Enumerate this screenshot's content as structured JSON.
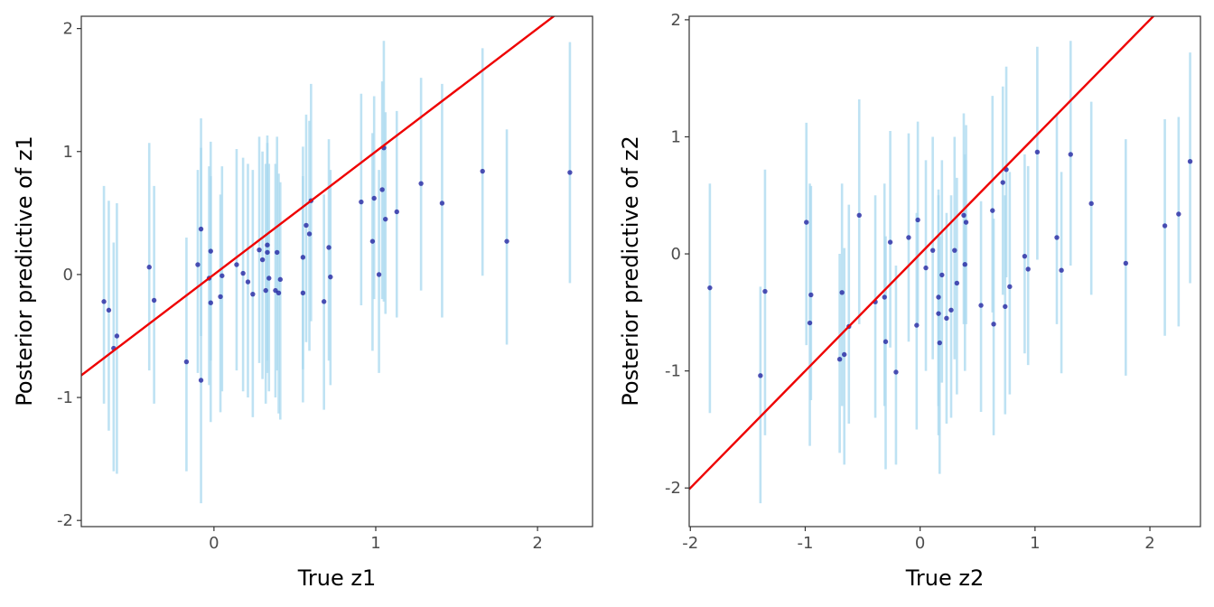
{
  "chart_data": [
    {
      "type": "scatter",
      "xlabel": "True z1",
      "ylabel": "Posterior predictive of z1",
      "xlim": [
        -0.82,
        2.34
      ],
      "ylim": [
        -2.05,
        2.1
      ],
      "xticks": [
        0,
        1,
        2
      ],
      "yticks": [
        -2,
        -1,
        0,
        1,
        2
      ],
      "reference_line": {
        "slope": 1,
        "intercept": 0,
        "color": "#ee0000"
      },
      "interval_color": "#a8d8ef",
      "point_color": "#1a1a9c",
      "points": [
        {
          "x": -0.68,
          "y": -0.22,
          "lo": -1.05,
          "hi": 0.72
        },
        {
          "x": -0.65,
          "y": -0.29,
          "lo": -1.27,
          "hi": 0.6
        },
        {
          "x": -0.62,
          "y": -0.6,
          "lo": -1.6,
          "hi": 0.26
        },
        {
          "x": -0.6,
          "y": -0.5,
          "lo": -1.62,
          "hi": 0.58
        },
        {
          "x": -0.4,
          "y": 0.06,
          "lo": -0.78,
          "hi": 1.07
        },
        {
          "x": -0.37,
          "y": -0.21,
          "lo": -1.05,
          "hi": 0.72
        },
        {
          "x": -0.17,
          "y": -0.71,
          "lo": -1.6,
          "hi": 0.3
        },
        {
          "x": -0.1,
          "y": 0.08,
          "lo": -0.8,
          "hi": 0.85
        },
        {
          "x": -0.08,
          "y": -0.86,
          "lo": -1.86,
          "hi": 1.27
        },
        {
          "x": -0.08,
          "y": 0.37,
          "lo": -0.5,
          "hi": 1.03
        },
        {
          "x": -0.03,
          "y": -0.03,
          "lo": -0.9,
          "hi": 0.88
        },
        {
          "x": -0.02,
          "y": 0.19,
          "lo": -0.7,
          "hi": 1.08
        },
        {
          "x": -0.02,
          "y": -0.23,
          "lo": -1.2,
          "hi": 0.8
        },
        {
          "x": 0.04,
          "y": -0.18,
          "lo": -1.12,
          "hi": 0.65
        },
        {
          "x": 0.05,
          "y": -0.01,
          "lo": -0.95,
          "hi": 0.88
        },
        {
          "x": 0.14,
          "y": 0.08,
          "lo": -0.78,
          "hi": 1.02
        },
        {
          "x": 0.18,
          "y": 0.01,
          "lo": -0.95,
          "hi": 0.95
        },
        {
          "x": 0.21,
          "y": -0.06,
          "lo": -1.0,
          "hi": 0.9
        },
        {
          "x": 0.24,
          "y": -0.16,
          "lo": -1.16,
          "hi": 0.85
        },
        {
          "x": 0.28,
          "y": 0.2,
          "lo": -0.72,
          "hi": 1.12
        },
        {
          "x": 0.3,
          "y": 0.12,
          "lo": -0.85,
          "hi": 1.0
        },
        {
          "x": 0.32,
          "y": -0.13,
          "lo": -1.05,
          "hi": 0.9
        },
        {
          "x": 0.33,
          "y": 0.18,
          "lo": -0.8,
          "hi": 1.13
        },
        {
          "x": 0.33,
          "y": 0.24,
          "lo": -0.7,
          "hi": 1.07
        },
        {
          "x": 0.34,
          "y": -0.03,
          "lo": -0.95,
          "hi": 0.9
        },
        {
          "x": 0.38,
          "y": -0.13,
          "lo": -1.0,
          "hi": 0.9
        },
        {
          "x": 0.39,
          "y": 0.18,
          "lo": -0.78,
          "hi": 1.12
        },
        {
          "x": 0.4,
          "y": -0.15,
          "lo": -1.13,
          "hi": 0.82
        },
        {
          "x": 0.41,
          "y": -0.04,
          "lo": -1.18,
          "hi": 0.75
        },
        {
          "x": 0.55,
          "y": 0.14,
          "lo": -0.77,
          "hi": 1.04
        },
        {
          "x": 0.55,
          "y": -0.15,
          "lo": -1.04,
          "hi": 0.8
        },
        {
          "x": 0.57,
          "y": 0.4,
          "lo": -0.55,
          "hi": 1.3
        },
        {
          "x": 0.59,
          "y": 0.33,
          "lo": -0.62,
          "hi": 1.25
        },
        {
          "x": 0.6,
          "y": 0.6,
          "lo": -0.38,
          "hi": 1.55
        },
        {
          "x": 0.68,
          "y": -0.22,
          "lo": -1.1,
          "hi": 0.65
        },
        {
          "x": 0.71,
          "y": 0.22,
          "lo": -0.7,
          "hi": 1.1
        },
        {
          "x": 0.72,
          "y": -0.02,
          "lo": -0.9,
          "hi": 0.85
        },
        {
          "x": 0.91,
          "y": 0.59,
          "lo": -0.25,
          "hi": 1.47
        },
        {
          "x": 0.98,
          "y": 0.27,
          "lo": -0.62,
          "hi": 1.15
        },
        {
          "x": 0.99,
          "y": 0.62,
          "lo": -0.2,
          "hi": 1.45
        },
        {
          "x": 1.02,
          "y": 0.0,
          "lo": -0.8,
          "hi": 0.85
        },
        {
          "x": 1.04,
          "y": 0.69,
          "lo": -0.2,
          "hi": 1.57
        },
        {
          "x": 1.05,
          "y": 1.03,
          "lo": -0.22,
          "hi": 1.9
        },
        {
          "x": 1.06,
          "y": 0.45,
          "lo": -0.32,
          "hi": 1.32
        },
        {
          "x": 1.13,
          "y": 0.51,
          "lo": -0.35,
          "hi": 1.33
        },
        {
          "x": 1.28,
          "y": 0.74,
          "lo": -0.13,
          "hi": 1.6
        },
        {
          "x": 1.41,
          "y": 0.58,
          "lo": -0.35,
          "hi": 1.55
        },
        {
          "x": 1.66,
          "y": 0.84,
          "lo": -0.01,
          "hi": 1.84
        },
        {
          "x": 1.81,
          "y": 0.27,
          "lo": -0.57,
          "hi": 1.18
        },
        {
          "x": 2.2,
          "y": 0.83,
          "lo": -0.07,
          "hi": 1.89
        }
      ]
    },
    {
      "type": "scatter",
      "xlabel": "True z2",
      "ylabel": "Posterior predictive of z2",
      "xlim": [
        -2.01,
        2.44
      ],
      "ylim": [
        -2.33,
        2.03
      ],
      "xticks": [
        -2,
        -1,
        0,
        1,
        2
      ],
      "yticks": [
        -2,
        -1,
        0,
        1,
        2
      ],
      "reference_line": {
        "slope": 1,
        "intercept": 0,
        "color": "#ee0000"
      },
      "interval_color": "#a8d8ef",
      "point_color": "#1a1a9c",
      "points": [
        {
          "x": -1.83,
          "y": -0.29,
          "lo": -1.36,
          "hi": 0.6
        },
        {
          "x": -1.39,
          "y": -1.04,
          "lo": -2.13,
          "hi": -0.28
        },
        {
          "x": -1.35,
          "y": -0.32,
          "lo": -1.55,
          "hi": 0.72
        },
        {
          "x": -0.99,
          "y": 0.27,
          "lo": -0.78,
          "hi": 1.12
        },
        {
          "x": -0.95,
          "y": -0.35,
          "lo": -1.25,
          "hi": 0.58
        },
        {
          "x": -0.96,
          "y": -0.59,
          "lo": -1.64,
          "hi": 0.6
        },
        {
          "x": -0.7,
          "y": -0.9,
          "lo": -1.7,
          "hi": 0.0
        },
        {
          "x": -0.68,
          "y": -0.33,
          "lo": -1.3,
          "hi": 0.6
        },
        {
          "x": -0.66,
          "y": -0.86,
          "lo": -1.8,
          "hi": 0.05
        },
        {
          "x": -0.62,
          "y": -0.62,
          "lo": -1.45,
          "hi": 0.42
        },
        {
          "x": -0.53,
          "y": 0.33,
          "lo": -0.6,
          "hi": 1.32
        },
        {
          "x": -0.39,
          "y": -0.41,
          "lo": -1.4,
          "hi": 0.5
        },
        {
          "x": -0.31,
          "y": -0.37,
          "lo": -1.3,
          "hi": 0.6
        },
        {
          "x": -0.3,
          "y": -0.75,
          "lo": -1.84,
          "hi": 0.15
        },
        {
          "x": -0.26,
          "y": 0.1,
          "lo": -0.8,
          "hi": 1.05
        },
        {
          "x": -0.21,
          "y": -1.01,
          "lo": -1.8,
          "hi": -0.1
        },
        {
          "x": -0.1,
          "y": 0.14,
          "lo": -0.75,
          "hi": 1.03
        },
        {
          "x": -0.02,
          "y": 0.29,
          "lo": -0.6,
          "hi": 1.13
        },
        {
          "x": -0.03,
          "y": -0.61,
          "lo": -1.5,
          "hi": 0.35
        },
        {
          "x": 0.05,
          "y": -0.12,
          "lo": -1.0,
          "hi": 0.8
        },
        {
          "x": 0.11,
          "y": 0.03,
          "lo": -0.9,
          "hi": 1.0
        },
        {
          "x": 0.16,
          "y": -0.37,
          "lo": -1.3,
          "hi": 0.55
        },
        {
          "x": 0.16,
          "y": -0.51,
          "lo": -1.55,
          "hi": 0.5
        },
        {
          "x": 0.17,
          "y": -0.76,
          "lo": -1.88,
          "hi": 0.15
        },
        {
          "x": 0.19,
          "y": -0.18,
          "lo": -1.1,
          "hi": 0.8
        },
        {
          "x": 0.23,
          "y": -0.55,
          "lo": -1.45,
          "hi": 0.35
        },
        {
          "x": 0.27,
          "y": -0.48,
          "lo": -1.4,
          "hi": 0.5
        },
        {
          "x": 0.3,
          "y": 0.03,
          "lo": -0.9,
          "hi": 1.0
        },
        {
          "x": 0.32,
          "y": -0.25,
          "lo": -1.2,
          "hi": 0.65
        },
        {
          "x": 0.38,
          "y": 0.33,
          "lo": -0.6,
          "hi": 1.2
        },
        {
          "x": 0.39,
          "y": -0.09,
          "lo": -1.0,
          "hi": 0.85
        },
        {
          "x": 0.4,
          "y": 0.27,
          "lo": -0.6,
          "hi": 1.1
        },
        {
          "x": 0.53,
          "y": -0.44,
          "lo": -1.35,
          "hi": 0.45
        },
        {
          "x": 0.63,
          "y": 0.37,
          "lo": -0.5,
          "hi": 1.35
        },
        {
          "x": 0.64,
          "y": -0.6,
          "lo": -1.55,
          "hi": 0.3
        },
        {
          "x": 0.72,
          "y": 0.61,
          "lo": -0.35,
          "hi": 1.43
        },
        {
          "x": 0.74,
          "y": -0.45,
          "lo": -1.37,
          "hi": 0.5
        },
        {
          "x": 0.75,
          "y": 0.72,
          "lo": -0.2,
          "hi": 1.6
        },
        {
          "x": 0.78,
          "y": -0.28,
          "lo": -1.2,
          "hi": 0.7
        },
        {
          "x": 0.91,
          "y": -0.02,
          "lo": -0.85,
          "hi": 0.85
        },
        {
          "x": 0.94,
          "y": -0.13,
          "lo": -0.95,
          "hi": 0.75
        },
        {
          "x": 1.02,
          "y": 0.87,
          "lo": -0.05,
          "hi": 1.77
        },
        {
          "x": 1.19,
          "y": 0.14,
          "lo": -0.6,
          "hi": 1.2
        },
        {
          "x": 1.23,
          "y": -0.14,
          "lo": -1.02,
          "hi": 0.7
        },
        {
          "x": 1.31,
          "y": 0.85,
          "lo": -0.1,
          "hi": 1.82
        },
        {
          "x": 1.49,
          "y": 0.43,
          "lo": -0.35,
          "hi": 1.3
        },
        {
          "x": 1.79,
          "y": -0.08,
          "lo": -1.04,
          "hi": 0.98
        },
        {
          "x": 2.13,
          "y": 0.24,
          "lo": -0.7,
          "hi": 1.15
        },
        {
          "x": 2.25,
          "y": 0.34,
          "lo": -0.62,
          "hi": 1.17
        },
        {
          "x": 2.35,
          "y": 0.79,
          "lo": -0.25,
          "hi": 1.72
        }
      ]
    }
  ]
}
